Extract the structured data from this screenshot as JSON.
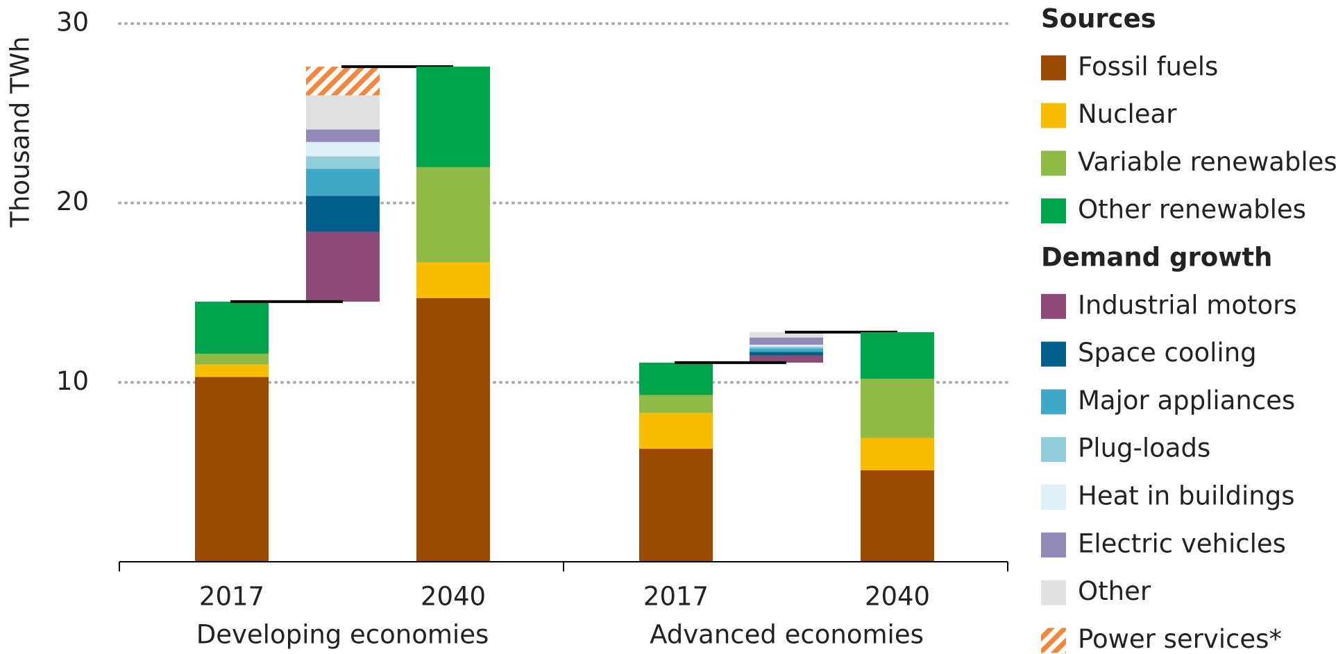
{
  "chart_data": {
    "type": "stacked_waterfall",
    "y_label": "Thousand TWh",
    "categories": [
      "2017",
      null,
      "2040",
      "2017",
      null,
      "2040"
    ],
    "groups": [
      "Developing economies",
      "Advanced economies"
    ],
    "ylim": [
      0,
      30
    ],
    "yticks": [
      10,
      20,
      30
    ],
    "grid": true,
    "legend_sections": [
      {
        "title": "Sources",
        "series": [
          {
            "name": "Fossil fuels",
            "color": "#9a4a00",
            "values": [
              10.3,
              null,
              14.7,
              6.3,
              null,
              5.1
            ]
          },
          {
            "name": "Nuclear",
            "color": "#f9bd00",
            "values": [
              0.7,
              null,
              2.0,
              2.0,
              null,
              1.8
            ]
          },
          {
            "name": "Variable renewables",
            "color": "#8dbb45",
            "values": [
              0.6,
              null,
              5.3,
              1.0,
              null,
              3.3
            ]
          },
          {
            "name": "Other renewables",
            "color": "#00a44a",
            "values": [
              2.9,
              null,
              5.6,
              1.8,
              null,
              2.6
            ]
          }
        ]
      },
      {
        "title": "Demand growth",
        "series": [
          {
            "name": "Industrial motors",
            "color": "#8d4a77",
            "values": [
              null,
              3.9,
              null,
              null,
              0.4,
              null
            ]
          },
          {
            "name": "Space cooling",
            "color": "#006089",
            "values": [
              null,
              2.0,
              null,
              null,
              0.2,
              null
            ]
          },
          {
            "name": "Major appliances",
            "color": "#3fa8c8",
            "values": [
              null,
              1.5,
              null,
              null,
              0.2,
              null
            ]
          },
          {
            "name": "Plug-loads",
            "color": "#92cddb",
            "values": [
              null,
              0.7,
              null,
              null,
              0.1,
              null
            ]
          },
          {
            "name": "Heat in buildings",
            "color": "#dcf0f6",
            "values": [
              null,
              0.8,
              null,
              null,
              0.1,
              null
            ]
          },
          {
            "name": "Electric vehicles",
            "color": "#9389b8",
            "values": [
              null,
              0.7,
              null,
              null,
              0.4,
              null
            ]
          },
          {
            "name": "Other",
            "color": "#e0e0e0",
            "values": [
              null,
              1.9,
              null,
              null,
              0.3,
              null
            ]
          },
          {
            "name": "Power services*",
            "color": "#f4863b",
            "hatch": true,
            "values": [
              null,
              1.6,
              null,
              null,
              0,
              null
            ]
          }
        ]
      }
    ]
  }
}
